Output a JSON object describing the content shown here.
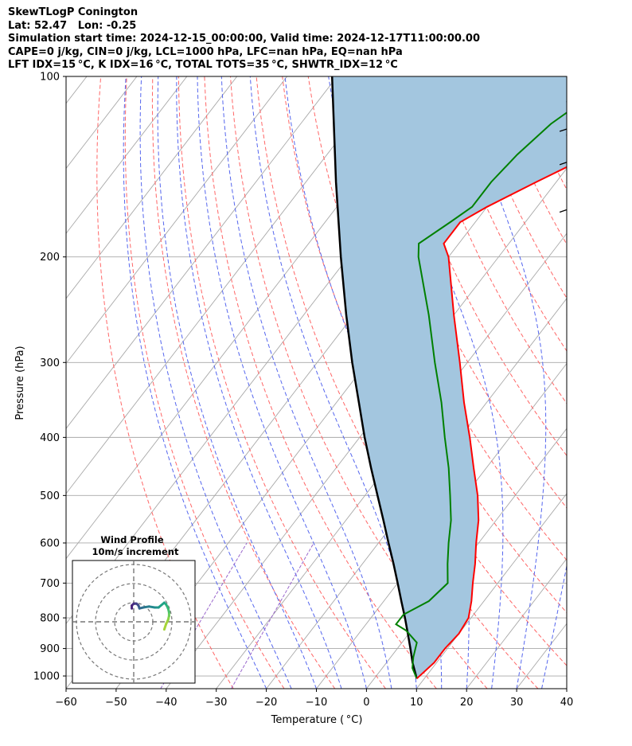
{
  "header": {
    "lines": [
      "SkewTLogP Conington",
      "Lat: 52.47   Lon: -0.25",
      "Simulation start time: 2024-12-15_00:00:00, Valid time: 2024-12-17T11:00:00.00",
      "CAPE=0 j/kg, CIN=0 j/kg, LCL=1000 hPa, LFC=nan hPa, EQ=nan hPa",
      "LFT IDX=15 °C, K IDX=16 °C, TOTAL TOTS=35 °C, SHWTR_IDX=12 °C"
    ]
  },
  "chart_data": {
    "type": "skewt-logp",
    "xlabel": "Temperature ( °C)",
    "ylabel": "Pressure (hPa)",
    "xlim": [
      -60,
      40
    ],
    "ylim": [
      1050,
      100
    ],
    "x_ticks": [
      "−60",
      "−50",
      "−40",
      "−30",
      "−20",
      "−10",
      "0",
      "10",
      "20",
      "30",
      "40"
    ],
    "x_tick_values": [
      -60,
      -50,
      -40,
      -30,
      -20,
      -10,
      0,
      10,
      20,
      30,
      40
    ],
    "y_ticks": [
      "100",
      "200",
      "300",
      "400",
      "500",
      "600",
      "700",
      "800",
      "900",
      "1000"
    ],
    "y_tick_values": [
      100,
      200,
      300,
      400,
      500,
      600,
      700,
      800,
      900,
      1000
    ],
    "grid": true,
    "colors": {
      "temperature": "#ff0000",
      "dewpoint": "#008000",
      "parcel": "#000000",
      "shade": "#a3c6df",
      "dry_adiabat": "#ff6666",
      "moist_adiabat": "#5566ee",
      "mixing_ratio": "#9966cc",
      "isotherm": "#a8a8a8",
      "isobar": "#a8a8a8"
    },
    "temperature_profile": [
      [
        1010,
        8.5
      ],
      [
        950,
        9.5
      ],
      [
        900,
        9.5
      ],
      [
        850,
        10
      ],
      [
        800,
        9.5
      ],
      [
        750,
        7.5
      ],
      [
        700,
        5
      ],
      [
        650,
        2.5
      ],
      [
        600,
        -0.5
      ],
      [
        550,
        -3.5
      ],
      [
        500,
        -7.5
      ],
      [
        450,
        -12.5
      ],
      [
        400,
        -18
      ],
      [
        350,
        -24.5
      ],
      [
        300,
        -31.5
      ],
      [
        250,
        -40
      ],
      [
        200,
        -50
      ],
      [
        190,
        -53
      ],
      [
        175,
        -53
      ],
      [
        165,
        -50
      ],
      [
        150,
        -44
      ],
      [
        135,
        -37
      ],
      [
        120,
        -33
      ],
      [
        100,
        -36
      ]
    ],
    "dewpoint_profile": [
      [
        1010,
        8.5
      ],
      [
        970,
        6
      ],
      [
        930,
        4.5
      ],
      [
        880,
        3
      ],
      [
        840,
        -1
      ],
      [
        820,
        -4
      ],
      [
        790,
        -4
      ],
      [
        750,
        -1
      ],
      [
        700,
        0
      ],
      [
        650,
        -3
      ],
      [
        600,
        -6
      ],
      [
        550,
        -9
      ],
      [
        500,
        -13
      ],
      [
        450,
        -17.5
      ],
      [
        400,
        -23
      ],
      [
        350,
        -29
      ],
      [
        300,
        -36.5
      ],
      [
        250,
        -45
      ],
      [
        200,
        -56
      ],
      [
        190,
        -58
      ],
      [
        175,
        -55
      ],
      [
        165,
        -53
      ],
      [
        150,
        -53
      ],
      [
        135,
        -52
      ],
      [
        120,
        -50
      ],
      [
        100,
        -44
      ]
    ],
    "parcel_profile": [
      [
        1010,
        8.5
      ],
      [
        950,
        5.2
      ],
      [
        900,
        2.6
      ],
      [
        850,
        -0.2
      ],
      [
        800,
        -3.2
      ],
      [
        750,
        -6.5
      ],
      [
        700,
        -10
      ],
      [
        650,
        -13.8
      ],
      [
        600,
        -18
      ],
      [
        550,
        -22.5
      ],
      [
        500,
        -27.5
      ],
      [
        450,
        -33
      ],
      [
        400,
        -39
      ],
      [
        350,
        -45.5
      ],
      [
        300,
        -53
      ],
      [
        250,
        -61.5
      ],
      [
        200,
        -71.5
      ],
      [
        150,
        -84
      ],
      [
        100,
        -101
      ]
    ],
    "wind_barbs": [
      {
        "p": 1000,
        "u": -9,
        "v": 15
      },
      {
        "p": 975,
        "u": -10,
        "v": 15
      },
      {
        "p": 950,
        "u": -10,
        "v": 14
      },
      {
        "p": 900,
        "u": -9,
        "v": 13
      },
      {
        "p": 850,
        "u": -7,
        "v": 12
      },
      {
        "p": 800,
        "u": -5,
        "v": 11
      },
      {
        "p": 750,
        "u": -6,
        "v": 11
      },
      {
        "p": 700,
        "u": -7,
        "v": 11
      },
      {
        "p": 650,
        "u": -6,
        "v": 11
      },
      {
        "p": 600,
        "u": -5,
        "v": 11
      },
      {
        "p": 550,
        "u": -6,
        "v": 11
      },
      {
        "p": 500,
        "u": -6,
        "v": 11
      },
      {
        "p": 450,
        "u": -6,
        "v": 11
      },
      {
        "p": 400,
        "u": -6,
        "v": 11
      },
      {
        "p": 350,
        "u": -6,
        "v": 11
      },
      {
        "p": 300,
        "u": -6,
        "v": 11
      },
      {
        "p": 250,
        "u": -5,
        "v": 11
      },
      {
        "p": 225,
        "u": -5,
        "v": 11
      },
      {
        "p": 200,
        "u": -5,
        "v": 11
      },
      {
        "p": 175,
        "u": -5,
        "v": 11
      },
      {
        "p": 150,
        "u": -1,
        "v": 12
      },
      {
        "p": 125,
        "u": -1,
        "v": 12
      },
      {
        "p": 110,
        "u": -1,
        "v": 12
      }
    ],
    "hodograph": {
      "title": "Wind Profile",
      "subtitle": "10m/s increment",
      "ring_increment_ms": 10,
      "points": [
        [
          16,
          -4
        ],
        [
          17,
          -1
        ],
        [
          18,
          1
        ],
        [
          18.5,
          3
        ],
        [
          18.5,
          5
        ],
        [
          18,
          7
        ],
        [
          17,
          9
        ],
        [
          16,
          10
        ],
        [
          13,
          7.5
        ],
        [
          11,
          7.5
        ],
        [
          8,
          8
        ],
        [
          5,
          7.5
        ],
        [
          3,
          7
        ],
        [
          2.5,
          8.5
        ],
        [
          1.5,
          9.5
        ],
        [
          0,
          9.5
        ],
        [
          -1,
          8.5
        ],
        [
          -1,
          7
        ]
      ]
    }
  }
}
